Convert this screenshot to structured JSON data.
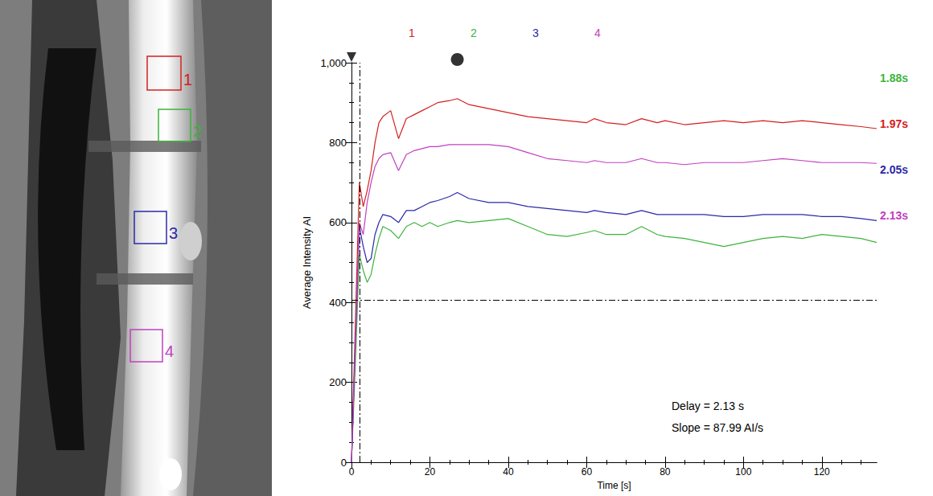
{
  "chart_data": {
    "type": "line",
    "xlabel": "Time [s]",
    "ylabel": "Average Intensity AI",
    "x": [
      0,
      1,
      2,
      3,
      4,
      5,
      6,
      7,
      8,
      10,
      12,
      14,
      16,
      18,
      20,
      22,
      25,
      27,
      30,
      35,
      40,
      45,
      50,
      55,
      60,
      62,
      65,
      70,
      74,
      78,
      80,
      85,
      90,
      95,
      100,
      105,
      110,
      115,
      120,
      125,
      130,
      134
    ],
    "series": [
      {
        "name": "1",
        "color": "#d42020",
        "delay_label": "1.97s",
        "values": [
          0,
          350,
          700,
          640,
          680,
          730,
          800,
          850,
          865,
          880,
          810,
          860,
          870,
          880,
          890,
          900,
          905,
          910,
          895,
          885,
          875,
          865,
          860,
          855,
          850,
          860,
          850,
          845,
          860,
          850,
          855,
          845,
          850,
          855,
          850,
          855,
          850,
          855,
          850,
          845,
          840,
          835
        ]
      },
      {
        "name": "2",
        "color": "#3cb43c",
        "delay_label": "1.88s",
        "values": [
          0,
          250,
          520,
          480,
          450,
          470,
          520,
          560,
          590,
          580,
          560,
          590,
          600,
          590,
          600,
          590,
          600,
          605,
          600,
          605,
          610,
          590,
          570,
          565,
          575,
          580,
          570,
          570,
          590,
          570,
          565,
          560,
          550,
          540,
          550,
          560,
          565,
          560,
          570,
          565,
          560,
          550
        ]
      },
      {
        "name": "3",
        "color": "#2a2aa8",
        "delay_label": "2.05s",
        "values": [
          0,
          300,
          590,
          540,
          500,
          510,
          570,
          600,
          620,
          615,
          600,
          630,
          630,
          640,
          650,
          655,
          665,
          675,
          660,
          650,
          650,
          640,
          635,
          630,
          625,
          630,
          625,
          620,
          630,
          620,
          620,
          620,
          620,
          615,
          615,
          620,
          620,
          620,
          615,
          615,
          610,
          605
        ]
      },
      {
        "name": "4",
        "color": "#c040c0",
        "delay_label": "2.13s",
        "values": [
          0,
          300,
          600,
          570,
          650,
          700,
          740,
          760,
          770,
          775,
          730,
          770,
          780,
          785,
          790,
          790,
          795,
          795,
          795,
          795,
          790,
          775,
          760,
          755,
          750,
          755,
          750,
          750,
          760,
          750,
          750,
          745,
          750,
          750,
          750,
          755,
          760,
          755,
          750,
          750,
          750,
          748
        ]
      }
    ],
    "xlim": [
      0,
      134
    ],
    "xticks": [
      0,
      20,
      40,
      60,
      80,
      100,
      120
    ],
    "ylim": [
      0,
      1000
    ],
    "yticks": [
      0,
      200,
      400,
      600,
      800,
      1000
    ],
    "grid": false,
    "legend": "top",
    "reference_lines": {
      "x": 2.13,
      "y": 405
    },
    "markers": [
      {
        "x": 0,
        "marker": "triangle"
      },
      {
        "x": 27,
        "marker": "circle"
      }
    ],
    "annotations": [
      "Delay = 2.13 s",
      "Slope = 87.99 AI/s"
    ]
  },
  "image": {
    "roi_labels": [
      "1",
      "2",
      "3",
      "4"
    ]
  }
}
